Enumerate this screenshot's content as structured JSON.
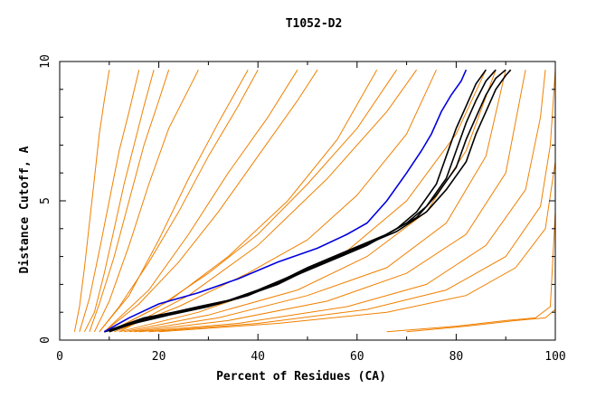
{
  "chart_data": {
    "type": "line",
    "title": "T1052-D2",
    "xlabel": "Percent of Residues (CA)",
    "ylabel": "Distance Cutoff, A",
    "xlim": [
      0,
      100
    ],
    "ylim": [
      0,
      10
    ],
    "x_ticks": [
      "0",
      "20",
      "40",
      "60",
      "80",
      "100"
    ],
    "y_ticks": [
      "0",
      "5",
      "10"
    ],
    "grid": false,
    "legend": "none",
    "colors": {
      "other_models": "#f08000",
      "highlighted_black": "#000000",
      "highlighted_blue": "#0000e0"
    },
    "series": [
      {
        "color": "#f08000",
        "points": [
          [
            3,
            0.3
          ],
          [
            4,
            1.2
          ],
          [
            5,
            2.6
          ],
          [
            6,
            4.2
          ],
          [
            7,
            5.8
          ],
          [
            8,
            7.4
          ],
          [
            9,
            8.6
          ],
          [
            10,
            9.7
          ]
        ]
      },
      {
        "color": "#f08000",
        "points": [
          [
            4,
            0.3
          ],
          [
            6,
            1.5
          ],
          [
            8,
            3.2
          ],
          [
            10,
            5.0
          ],
          [
            12,
            6.8
          ],
          [
            14,
            8.2
          ],
          [
            16,
            9.7
          ]
        ]
      },
      {
        "color": "#f08000",
        "points": [
          [
            5,
            0.3
          ],
          [
            7,
            1.0
          ],
          [
            9,
            2.4
          ],
          [
            11,
            4.0
          ],
          [
            13,
            5.6
          ],
          [
            15,
            7.0
          ],
          [
            17,
            8.4
          ],
          [
            19,
            9.7
          ]
        ]
      },
      {
        "color": "#f08000",
        "points": [
          [
            6,
            0.3
          ],
          [
            8,
            1.3
          ],
          [
            11,
            3.0
          ],
          [
            14,
            5.0
          ],
          [
            17,
            7.0
          ],
          [
            20,
            8.6
          ],
          [
            22,
            9.7
          ]
        ]
      },
      {
        "color": "#f08000",
        "points": [
          [
            7,
            0.3
          ],
          [
            10,
            1.4
          ],
          [
            14,
            3.4
          ],
          [
            18,
            5.6
          ],
          [
            22,
            7.6
          ],
          [
            26,
            9.0
          ],
          [
            28,
            9.7
          ]
        ]
      },
      {
        "color": "#f08000",
        "points": [
          [
            8,
            0.3
          ],
          [
            12,
            1.2
          ],
          [
            18,
            2.8
          ],
          [
            24,
            4.6
          ],
          [
            30,
            6.6
          ],
          [
            36,
            8.4
          ],
          [
            40,
            9.7
          ]
        ]
      },
      {
        "color": "#f08000",
        "points": [
          [
            8,
            0.3
          ],
          [
            14,
            1.6
          ],
          [
            20,
            3.6
          ],
          [
            26,
            5.8
          ],
          [
            32,
            7.8
          ],
          [
            38,
            9.7
          ]
        ]
      },
      {
        "color": "#f08000",
        "points": [
          [
            9,
            0.3
          ],
          [
            16,
            1.3
          ],
          [
            24,
            2.8
          ],
          [
            32,
            4.6
          ],
          [
            40,
            6.6
          ],
          [
            48,
            8.6
          ],
          [
            52,
            9.7
          ]
        ]
      },
      {
        "color": "#f08000",
        "points": [
          [
            9,
            0.3
          ],
          [
            18,
            1.8
          ],
          [
            26,
            3.8
          ],
          [
            34,
            6.0
          ],
          [
            42,
            8.0
          ],
          [
            48,
            9.7
          ]
        ]
      },
      {
        "color": "#f08000",
        "points": [
          [
            10,
            0.3
          ],
          [
            20,
            1.2
          ],
          [
            30,
            2.4
          ],
          [
            40,
            3.8
          ],
          [
            50,
            5.6
          ],
          [
            60,
            7.6
          ],
          [
            68,
            9.7
          ]
        ]
      },
      {
        "color": "#f08000",
        "points": [
          [
            10,
            0.3
          ],
          [
            22,
            1.4
          ],
          [
            34,
            3.0
          ],
          [
            46,
            5.0
          ],
          [
            56,
            7.2
          ],
          [
            64,
            9.7
          ]
        ]
      },
      {
        "color": "#f08000",
        "points": [
          [
            11,
            0.3
          ],
          [
            24,
            1.2
          ],
          [
            38,
            2.4
          ],
          [
            50,
            3.6
          ],
          [
            60,
            5.2
          ],
          [
            70,
            7.4
          ],
          [
            76,
            9.7
          ]
        ]
      },
      {
        "color": "#f08000",
        "points": [
          [
            12,
            0.3
          ],
          [
            26,
            1.6
          ],
          [
            40,
            3.4
          ],
          [
            54,
            5.8
          ],
          [
            66,
            8.2
          ],
          [
            72,
            9.7
          ]
        ]
      },
      {
        "color": "#f08000",
        "points": [
          [
            12,
            0.3
          ],
          [
            28,
            1.0
          ],
          [
            44,
            2.0
          ],
          [
            58,
            3.2
          ],
          [
            70,
            5.0
          ],
          [
            80,
            7.4
          ],
          [
            86,
            9.7
          ]
        ]
      },
      {
        "color": "#f08000",
        "points": [
          [
            13,
            0.3
          ],
          [
            30,
            0.9
          ],
          [
            48,
            1.8
          ],
          [
            62,
            3.0
          ],
          [
            74,
            4.6
          ],
          [
            82,
            6.8
          ],
          [
            88,
            9.7
          ]
        ]
      },
      {
        "color": "#f08000",
        "points": [
          [
            14,
            0.3
          ],
          [
            32,
            0.8
          ],
          [
            50,
            1.6
          ],
          [
            66,
            2.6
          ],
          [
            78,
            4.2
          ],
          [
            86,
            6.6
          ],
          [
            90,
            9.7
          ]
        ]
      },
      {
        "color": "#f08000",
        "points": [
          [
            15,
            0.3
          ],
          [
            34,
            0.7
          ],
          [
            54,
            1.4
          ],
          [
            70,
            2.4
          ],
          [
            82,
            3.8
          ],
          [
            90,
            6.0
          ],
          [
            94,
            9.7
          ]
        ]
      },
      {
        "color": "#f08000",
        "points": [
          [
            16,
            0.3
          ],
          [
            36,
            0.6
          ],
          [
            58,
            1.2
          ],
          [
            74,
            2.0
          ],
          [
            86,
            3.4
          ],
          [
            94,
            5.4
          ],
          [
            97,
            8.0
          ],
          [
            98,
            9.7
          ]
        ]
      },
      {
        "color": "#f08000",
        "points": [
          [
            18,
            0.3
          ],
          [
            40,
            0.6
          ],
          [
            62,
            1.1
          ],
          [
            78,
            1.8
          ],
          [
            90,
            3.0
          ],
          [
            97,
            4.8
          ],
          [
            99,
            7.0
          ],
          [
            100,
            9.7
          ]
        ]
      },
      {
        "color": "#f08000",
        "points": [
          [
            20,
            0.3
          ],
          [
            44,
            0.6
          ],
          [
            66,
            1.0
          ],
          [
            82,
            1.6
          ],
          [
            92,
            2.6
          ],
          [
            98,
            4.0
          ],
          [
            100,
            6.4
          ]
        ]
      },
      {
        "color": "#f08000",
        "points": [
          [
            66,
            0.3
          ],
          [
            80,
            0.5
          ],
          [
            90,
            0.7
          ],
          [
            96,
            0.8
          ],
          [
            99,
            1.2
          ],
          [
            100,
            4.6
          ]
        ]
      },
      {
        "color": "#f08000",
        "points": [
          [
            70,
            0.3
          ],
          [
            82,
            0.5
          ],
          [
            92,
            0.7
          ],
          [
            98,
            0.8
          ],
          [
            100,
            1.1
          ]
        ]
      },
      {
        "color": "#000000",
        "points": [
          [
            9,
            0.3
          ],
          [
            15,
            0.6
          ],
          [
            22,
            0.9
          ],
          [
            30,
            1.2
          ],
          [
            38,
            1.6
          ],
          [
            46,
            2.2
          ],
          [
            54,
            2.8
          ],
          [
            62,
            3.4
          ],
          [
            68,
            4.0
          ],
          [
            72,
            4.6
          ],
          [
            76,
            5.6
          ],
          [
            78,
            6.6
          ],
          [
            80,
            7.6
          ],
          [
            82,
            8.4
          ],
          [
            84,
            9.2
          ],
          [
            86,
            9.7
          ]
        ]
      },
      {
        "color": "#000000",
        "points": [
          [
            9,
            0.3
          ],
          [
            16,
            0.7
          ],
          [
            24,
            1.0
          ],
          [
            32,
            1.3
          ],
          [
            40,
            1.8
          ],
          [
            48,
            2.4
          ],
          [
            56,
            3.0
          ],
          [
            64,
            3.6
          ],
          [
            70,
            4.2
          ],
          [
            74,
            4.8
          ],
          [
            78,
            5.8
          ],
          [
            80,
            6.8
          ],
          [
            82,
            7.8
          ],
          [
            84,
            8.6
          ],
          [
            86,
            9.3
          ],
          [
            88,
            9.7
          ]
        ]
      },
      {
        "color": "#000000",
        "points": [
          [
            9,
            0.3
          ],
          [
            17,
            0.8
          ],
          [
            26,
            1.1
          ],
          [
            34,
            1.4
          ],
          [
            42,
            1.9
          ],
          [
            50,
            2.6
          ],
          [
            58,
            3.2
          ],
          [
            66,
            3.8
          ],
          [
            72,
            4.4
          ],
          [
            76,
            5.2
          ],
          [
            80,
            6.2
          ],
          [
            82,
            7.2
          ],
          [
            84,
            8.0
          ],
          [
            86,
            8.8
          ],
          [
            88,
            9.4
          ],
          [
            90,
            9.7
          ]
        ]
      },
      {
        "color": "#000000",
        "points": [
          [
            10,
            0.3
          ],
          [
            18,
            0.8
          ],
          [
            28,
            1.2
          ],
          [
            36,
            1.5
          ],
          [
            44,
            2.0
          ],
          [
            52,
            2.7
          ],
          [
            60,
            3.3
          ],
          [
            68,
            3.9
          ],
          [
            74,
            4.6
          ],
          [
            78,
            5.4
          ],
          [
            82,
            6.4
          ],
          [
            84,
            7.4
          ],
          [
            86,
            8.2
          ],
          [
            88,
            9.0
          ],
          [
            90,
            9.5
          ],
          [
            91,
            9.7
          ]
        ]
      },
      {
        "color": "#0000e0",
        "points": [
          [
            9,
            0.3
          ],
          [
            14,
            0.8
          ],
          [
            20,
            1.3
          ],
          [
            28,
            1.7
          ],
          [
            36,
            2.2
          ],
          [
            44,
            2.8
          ],
          [
            52,
            3.3
          ],
          [
            58,
            3.8
          ],
          [
            62,
            4.2
          ],
          [
            66,
            5.0
          ],
          [
            70,
            6.0
          ],
          [
            73,
            6.8
          ],
          [
            75,
            7.4
          ],
          [
            77,
            8.2
          ],
          [
            79,
            8.8
          ],
          [
            81,
            9.3
          ],
          [
            82,
            9.7
          ]
        ]
      }
    ]
  }
}
